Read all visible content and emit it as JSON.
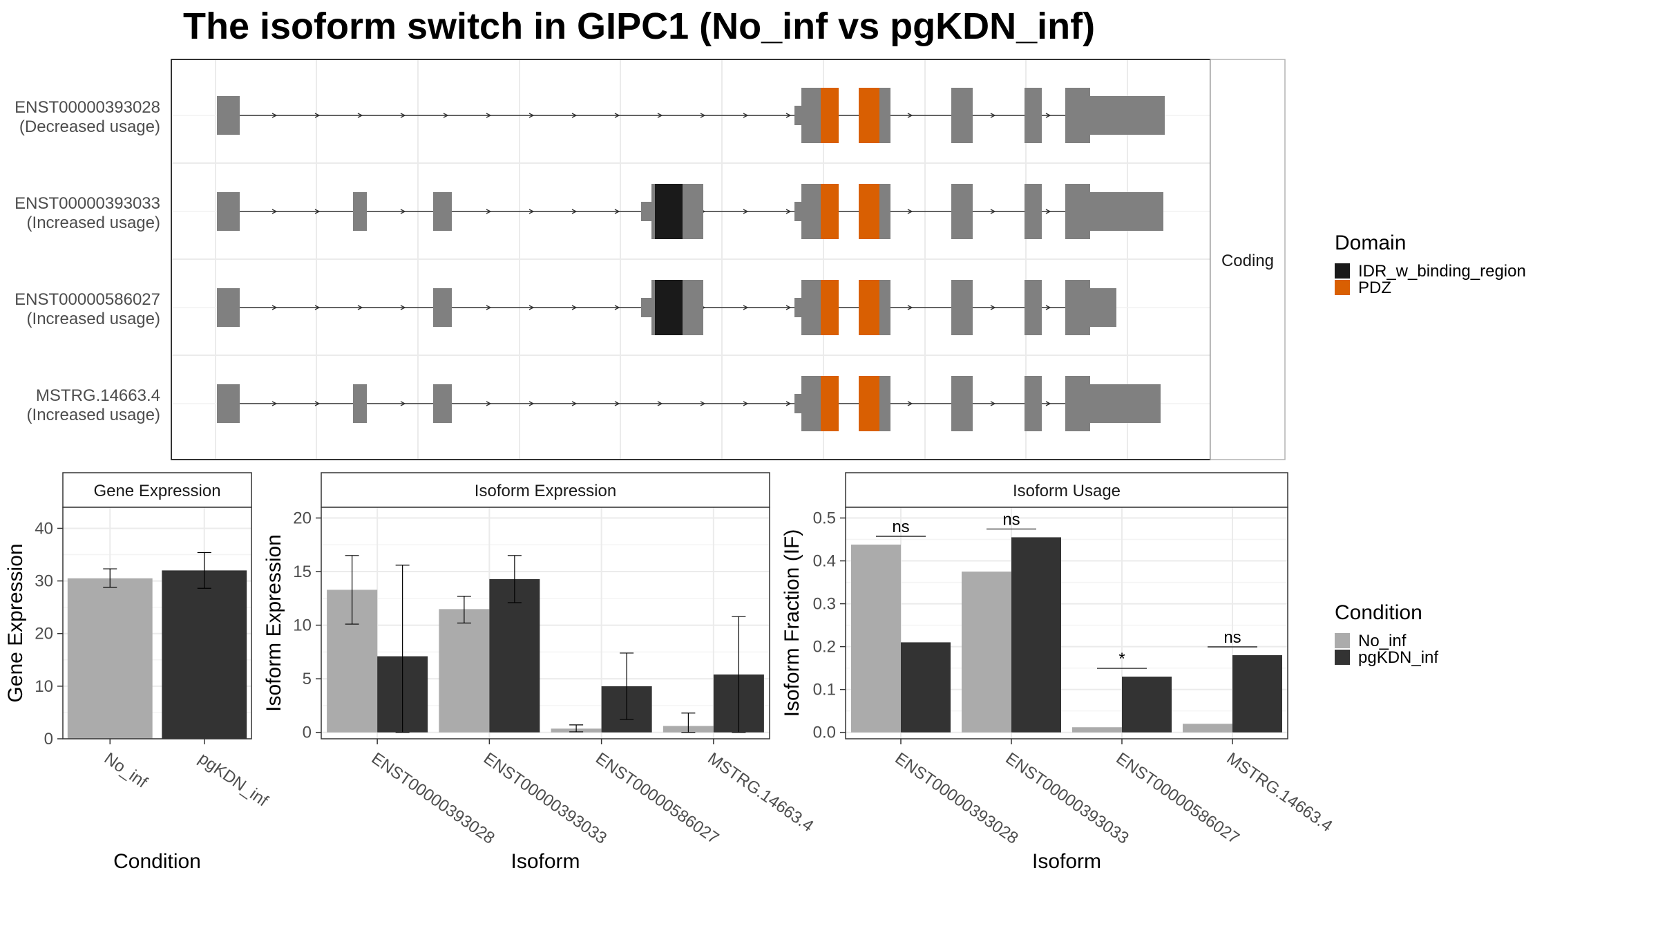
{
  "title": "The isoform switch in GIPC1 (No_inf vs pgKDN_inf)",
  "colors": {
    "exon": "#808080",
    "idr": "#1a1a1a",
    "pdz": "#d95f02",
    "no_inf": "#ababab",
    "pgKDN_inf": "#333333",
    "panel_border": "#333333",
    "strip_fill": "#ffffff",
    "grid": "#ebebeb"
  },
  "structure": {
    "strip_label": "Coding",
    "isoforms": [
      {
        "id": "ENST00000393028",
        "usage": "(Decreased usage)"
      },
      {
        "id": "ENST00000393033",
        "usage": "(Increased usage)"
      },
      {
        "id": "ENST00000586027",
        "usage": "(Increased usage)"
      },
      {
        "id": "MSTRG.14663.4",
        "usage": "(Increased usage)"
      }
    ],
    "domain_legend": {
      "title": "Domain",
      "items": [
        {
          "label": "IDR_w_binding_region",
          "color": "#1a1a1a"
        },
        {
          "label": "PDZ",
          "color": "#d95f02"
        }
      ]
    }
  },
  "condition_legend": {
    "title": "Condition",
    "items": [
      {
        "label": "No_inf",
        "color": "#ababab"
      },
      {
        "label": "pgKDN_inf",
        "color": "#333333"
      }
    ]
  },
  "chart_data": [
    {
      "type": "bar",
      "panel": "Gene Expression",
      "xlabel": "Condition",
      "ylabel": "Gene Expression",
      "categories": [
        "No_inf",
        "pgKDN_inf"
      ],
      "values": [
        30.5,
        32.0
      ],
      "error_low": [
        28.8,
        28.6
      ],
      "error_high": [
        32.3,
        35.4
      ],
      "ylim": [
        0,
        44
      ],
      "yticks": [
        0,
        10,
        20,
        30,
        40
      ],
      "grid": true
    },
    {
      "type": "bar",
      "panel": "Isoform Expression",
      "xlabel": "Isoform",
      "ylabel": "Isoform Expression",
      "categories": [
        "ENST00000393028",
        "ENST00000393033",
        "ENST00000586027",
        "MSTRG.14663.4"
      ],
      "series": [
        {
          "name": "No_inf",
          "values": [
            13.3,
            11.5,
            0.35,
            0.6
          ],
          "error_low": [
            10.1,
            10.2,
            0.05,
            0.0
          ],
          "error_high": [
            16.5,
            12.7,
            0.7,
            1.8
          ]
        },
        {
          "name": "pgKDN_inf",
          "values": [
            7.1,
            14.3,
            4.3,
            5.4
          ],
          "error_low": [
            0.0,
            12.1,
            1.2,
            0.0
          ],
          "error_high": [
            15.6,
            16.5,
            7.4,
            10.8
          ]
        }
      ],
      "ylim": [
        -0.6,
        21
      ],
      "yticks": [
        0,
        5,
        10,
        15,
        20
      ],
      "grid": true
    },
    {
      "type": "bar",
      "panel": "Isoform Usage",
      "xlabel": "Isoform",
      "ylabel": "Isoform Fraction (IF)",
      "categories": [
        "ENST00000393028",
        "ENST00000393033",
        "ENST00000586027",
        "MSTRG.14663.4"
      ],
      "series": [
        {
          "name": "No_inf",
          "values": [
            0.438,
            0.375,
            0.012,
            0.02
          ]
        },
        {
          "name": "pgKDN_inf",
          "values": [
            0.21,
            0.455,
            0.13,
            0.18
          ]
        }
      ],
      "significance": [
        "ns",
        "ns",
        "*",
        "ns"
      ],
      "ylim": [
        -0.015,
        0.525
      ],
      "yticks": [
        0.0,
        0.1,
        0.2,
        0.3,
        0.4,
        0.5
      ],
      "ytick_labels": [
        "0.0",
        "0.1",
        "0.2",
        "0.3",
        "0.4",
        "0.5"
      ],
      "grid": true
    }
  ]
}
